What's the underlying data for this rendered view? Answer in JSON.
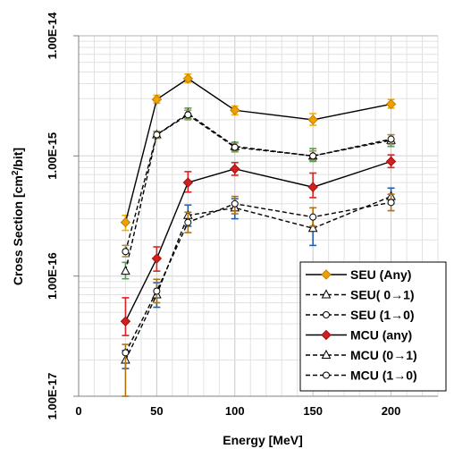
{
  "chart_data": {
    "type": "line",
    "title": "",
    "xlabel": "Energy [MeV]",
    "ylabel_main": "Cross Section [cm",
    "ylabel_sup": "2",
    "ylabel_end": "/bit]",
    "xlim": [
      0,
      230
    ],
    "ylim": [
      1e-17,
      1e-14
    ],
    "yscale": "log",
    "x_ticks": [
      0,
      50,
      100,
      150,
      200
    ],
    "x_tick_labels": [
      "0",
      "50",
      "100",
      "150",
      "200"
    ],
    "y_ticks": [
      1e-17,
      1e-16,
      1e-15,
      1e-14
    ],
    "y_tick_labels": [
      "1.00E-17",
      "1.00E-16",
      "1.00E-15",
      "1.00E-14"
    ],
    "grid": true,
    "legend_position": "bottom-right",
    "series": [
      {
        "name": "SEU (Any)",
        "line": "solid",
        "marker": "diamond",
        "marker_fill": "#f0a000",
        "marker_stroke": "#c08000",
        "error_color": "#f0b000",
        "x": [
          30,
          50,
          70,
          100,
          150,
          200
        ],
        "y": [
          2.8e-16,
          2.95e-15,
          4.4e-15,
          2.4e-15,
          2e-15,
          2.7e-15
        ],
        "err_lo": [
          2.4e-16,
          2.75e-15,
          4.1e-15,
          2.2e-15,
          1.8e-15,
          2.5e-15
        ],
        "err_hi": [
          3.2e-16,
          3.2e-15,
          4.8e-15,
          2.6e-15,
          2.25e-15,
          2.95e-15
        ]
      },
      {
        "name": "SEU( 0→1)",
        "line": "dashed",
        "marker": "triangle",
        "marker_fill": "#ffffff",
        "marker_stroke": "#000000",
        "error_color": "#50a050",
        "x": [
          30,
          50,
          70,
          100,
          150,
          200
        ],
        "y": [
          1.1e-16,
          1.5e-15,
          2.25e-15,
          1.2e-15,
          1e-15,
          1.35e-15
        ],
        "err_lo": [
          9.5e-17,
          1.4e-15,
          2.05e-15,
          1.1e-15,
          9e-16,
          1.2e-15
        ],
        "err_hi": [
          1.3e-16,
          1.6e-15,
          2.5e-15,
          1.3e-15,
          1.15e-15,
          1.5e-15
        ]
      },
      {
        "name": "SEU (1→0)",
        "line": "dashed",
        "marker": "circle",
        "marker_fill": "#ffffff",
        "marker_stroke": "#000000",
        "error_color": "#a09060",
        "x": [
          30,
          50,
          70,
          100,
          150,
          200
        ],
        "y": [
          1.6e-16,
          1.5e-15,
          2.2e-15,
          1.18e-15,
          1e-15,
          1.38e-15
        ],
        "err_lo": [
          1.45e-16,
          1.4e-15,
          2e-15,
          1.08e-15,
          9.2e-16,
          1.25e-15
        ],
        "err_hi": [
          1.8e-16,
          1.6e-15,
          2.4e-15,
          1.28e-15,
          1.1e-15,
          1.5e-15
        ]
      },
      {
        "name": "MCU (any)",
        "line": "solid",
        "marker": "diamond",
        "marker_fill": "#d02020",
        "marker_stroke": "#a01010",
        "error_color": "#e02020",
        "x": [
          30,
          50,
          70,
          100,
          150,
          200
        ],
        "y": [
          4.2e-17,
          1.4e-16,
          6e-16,
          7.8e-16,
          5.5e-16,
          9e-16
        ],
        "err_lo": [
          3.2e-17,
          1.1e-16,
          5e-16,
          6.9e-16,
          4.5e-16,
          8e-16
        ],
        "err_hi": [
          6.6e-17,
          1.75e-16,
          7.4e-16,
          8.8e-16,
          7.2e-16,
          1.02e-15
        ]
      },
      {
        "name": "MCU (0→1)",
        "line": "dashed",
        "marker": "triangle",
        "marker_fill": "#ffffff",
        "marker_stroke": "#000000",
        "error_color": "#2060b0",
        "x": [
          30,
          50,
          70,
          100,
          150,
          200
        ],
        "y": [
          2e-17,
          7e-17,
          3.2e-16,
          3.7e-16,
          2.5e-16,
          4.6e-16
        ],
        "err_lo": [
          1.7e-17,
          5.5e-17,
          2.6e-16,
          3e-16,
          1.8e-16,
          4e-16
        ],
        "err_hi": [
          2.4e-17,
          8.8e-17,
          3.9e-16,
          4.4e-16,
          3.1e-16,
          5.4e-16
        ]
      },
      {
        "name": "MCU (1→0)",
        "line": "dashed",
        "marker": "circle",
        "marker_fill": "#ffffff",
        "marker_stroke": "#000000",
        "error_color": "#b07010",
        "x": [
          30,
          50,
          70,
          100,
          150,
          200
        ],
        "y": [
          2.3e-17,
          7.5e-17,
          2.8e-16,
          4e-16,
          3.1e-16,
          4.1e-16
        ],
        "err_lo": [
          1e-17,
          6e-17,
          2.3e-16,
          3.3e-16,
          2.6e-16,
          3.5e-16
        ],
        "err_hi": [
          2.7e-17,
          9.4e-17,
          3.4e-16,
          4.6e-16,
          3.7e-16,
          4.8e-16
        ]
      }
    ]
  }
}
